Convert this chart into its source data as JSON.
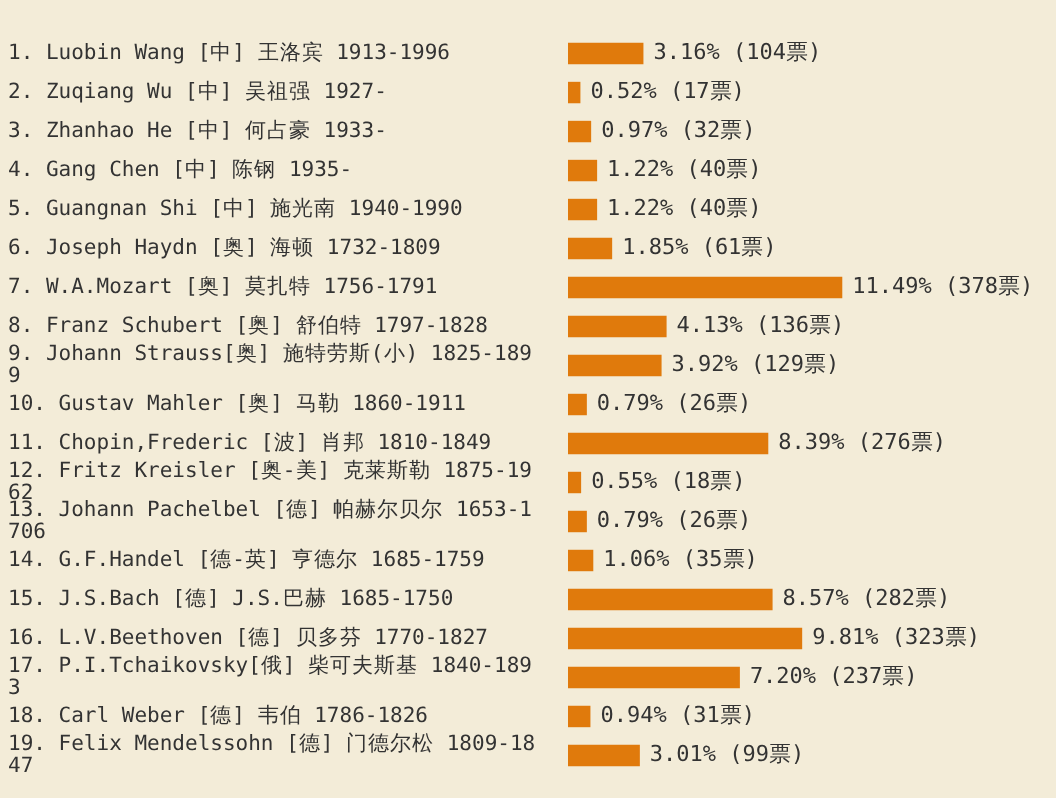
{
  "chart_data": {
    "type": "bar",
    "orientation": "horizontal",
    "categories": [
      "1. Luobin Wang [中] 王洛宾 1913-1996",
      "2. Zuqiang Wu [中] 吴祖强 1927-",
      "3. Zhanhao He [中] 何占豪 1933-",
      "4. Gang Chen [中] 陈钢 1935-",
      "5. Guangnan Shi [中] 施光南 1940-1990",
      "6. Joseph Haydn [奥] 海顿 1732-1809",
      "7. W.A.Mozart [奥] 莫扎特 1756-1791",
      "8. Franz Schubert [奥] 舒伯特 1797-1828",
      "9. Johann Strauss[奥] 施特劳斯(小) 1825-1899",
      "10. Gustav Mahler [奥] 马勒 1860-1911",
      "11. Chopin,Frederic [波] 肖邦 1810-1849",
      "12. Fritz Kreisler [奥-美] 克莱斯勒 1875-1962",
      "13. Johann Pachelbel [德] 帕赫尔贝尔 1653-1706",
      "14. G.F.Handel [德-英] 亨德尔 1685-1759",
      "15. J.S.Bach [德] J.S.巴赫 1685-1750",
      "16. L.V.Beethoven [德] 贝多芬 1770-1827",
      "17. P.I.Tchaikovsky[俄] 柴可夫斯基 1840-1893",
      "18. Carl Weber [德] 韦伯 1786-1826",
      "19. Felix Mendelssohn [德] 门德尔松 1809-1847"
    ],
    "values": [
      3.16,
      0.52,
      0.97,
      1.22,
      1.22,
      1.85,
      11.49,
      4.13,
      3.92,
      0.79,
      8.39,
      0.55,
      0.79,
      1.06,
      8.57,
      9.81,
      7.2,
      0.94,
      3.01
    ],
    "value_labels": [
      "3.16% (104票)",
      "0.52% (17票)",
      "0.97% (32票)",
      "1.22% (40票)",
      "1.22% (40票)",
      "1.85% (61票)",
      "11.49% (378票)",
      "4.13% (136票)",
      "3.92% (129票)",
      "0.79% (26票)",
      "8.39% (276票)",
      "0.55% (18票)",
      "0.79% (26票)",
      "1.06% (35票)",
      "8.57% (282票)",
      "9.81% (323票)",
      "7.20% (237票)",
      "0.94% (31票)",
      "3.01% (99票)"
    ],
    "color": "#e07a0c",
    "legend": false
  }
}
